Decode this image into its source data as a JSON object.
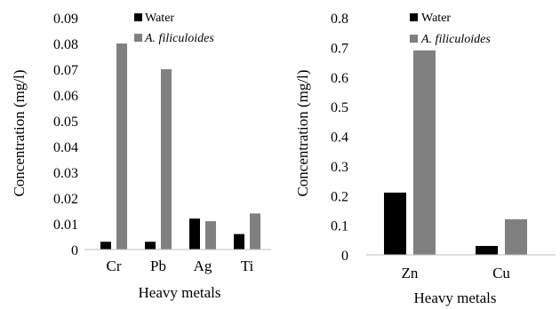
{
  "colors": {
    "water": "#000000",
    "azolla": "#808080",
    "axis": "#bfbfbf",
    "background": "#ffffff"
  },
  "chart_data": [
    {
      "type": "bar",
      "categories": [
        "Cr",
        "Pb",
        "Ag",
        "Ti"
      ],
      "series": [
        {
          "name": "Water",
          "values": [
            0.003,
            0.003,
            0.012,
            0.006
          ]
        },
        {
          "name": "A. filiculoides",
          "values": [
            0.08,
            0.07,
            0.011,
            0.014
          ]
        }
      ],
      "xlabel": "Heavy metals",
      "ylabel": "Concentration (mg/l)",
      "ylim": [
        0,
        0.09
      ],
      "yticks": [
        "0",
        "0.01",
        "0.02",
        "0.03",
        "0.04",
        "0.05",
        "0.06",
        "0.07",
        "0.08",
        "0.09"
      ],
      "grid": false,
      "legend_position": "top-right"
    },
    {
      "type": "bar",
      "categories": [
        "Zn",
        "Cu"
      ],
      "series": [
        {
          "name": "Water",
          "values": [
            0.21,
            0.03
          ]
        },
        {
          "name": "A. filiculoides",
          "values": [
            0.69,
            0.12
          ]
        }
      ],
      "xlabel": "Heavy metals",
      "ylabel": "Concentration (mg/l)",
      "ylim": [
        0,
        0.8
      ],
      "yticks": [
        "0",
        "0.1",
        "0.2",
        "0.3",
        "0.4",
        "0.5",
        "0.6",
        "0.7",
        "0.8"
      ],
      "grid": false,
      "legend_position": "top-right"
    }
  ]
}
